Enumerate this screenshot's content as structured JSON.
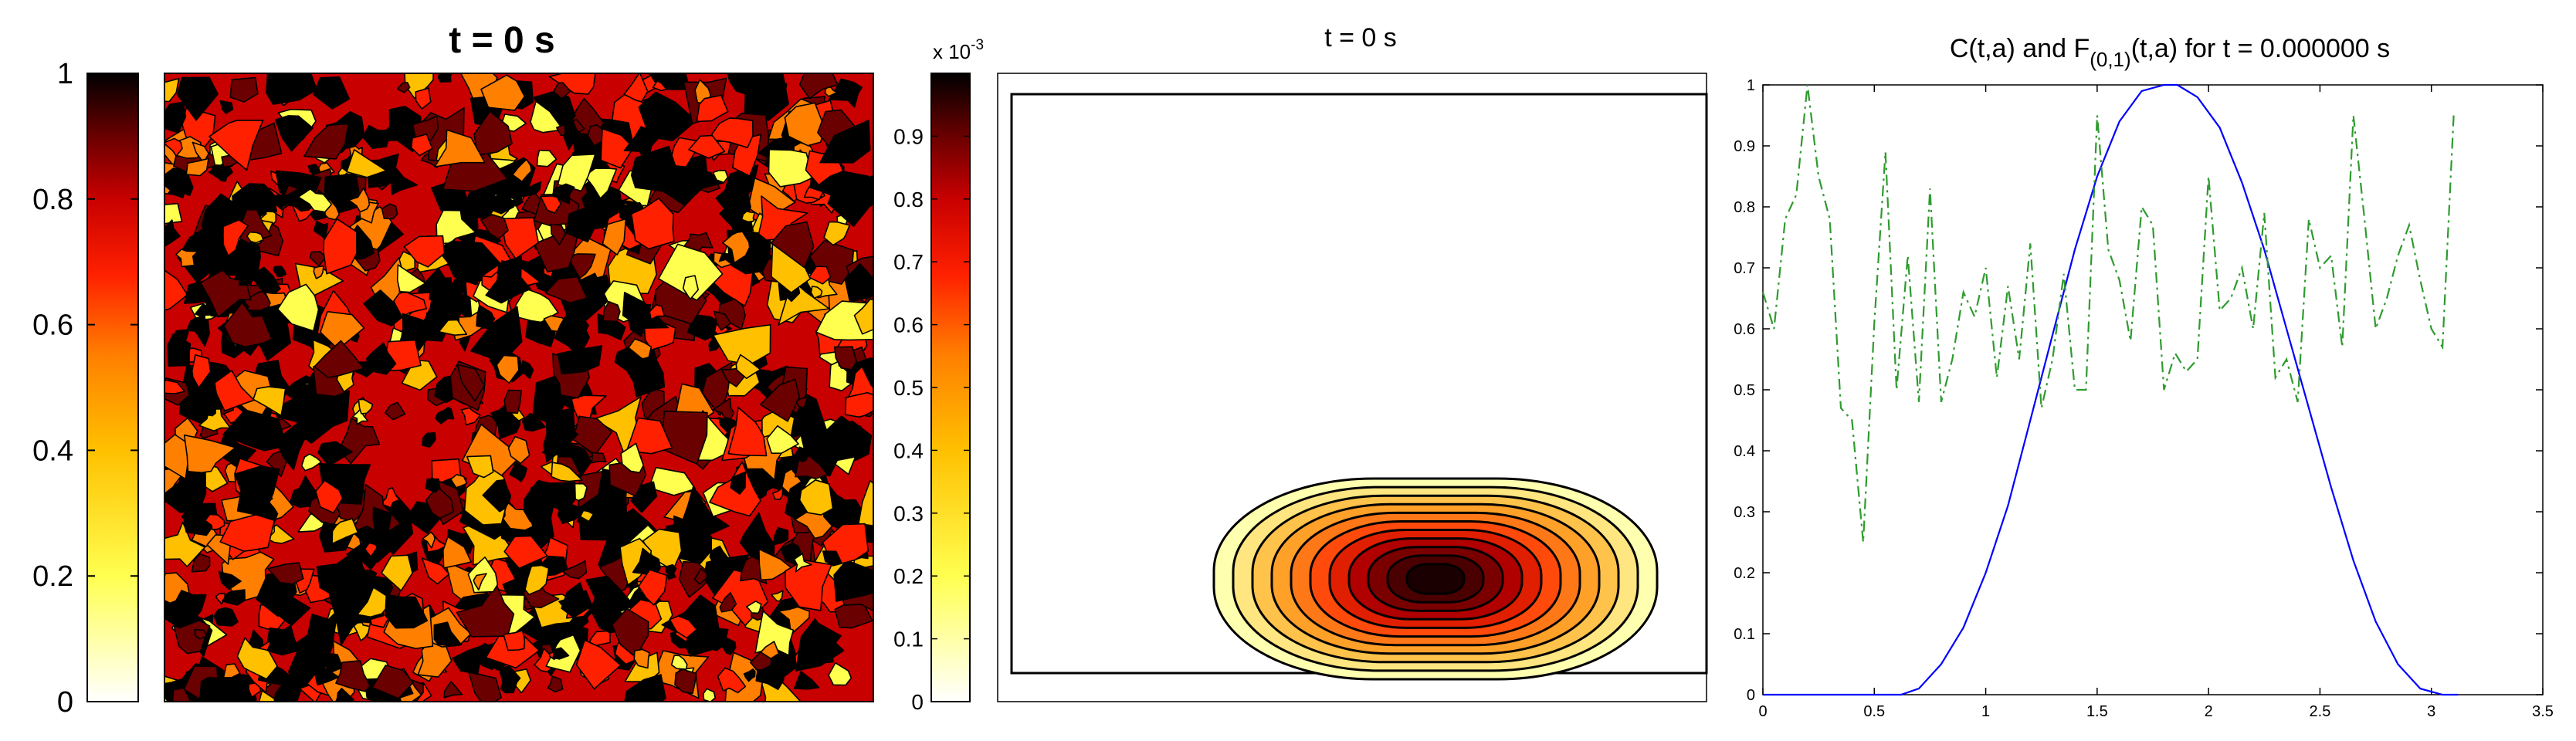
{
  "panels": {
    "left": {
      "title": "t = 0 s",
      "colorbar_ticks": [
        "0",
        "0.2",
        "0.4",
        "0.6",
        "0.8",
        "1"
      ],
      "colormap": [
        "#ffffff",
        "#ffff50",
        "#ffc000",
        "#ff8000",
        "#ff2000",
        "#c80000",
        "#6a0000",
        "#000000"
      ]
    },
    "middle": {
      "title": "t = 0 s",
      "colorbar_exponent": "x 10",
      "colorbar_exponent_power": "-3",
      "colorbar_ticks": [
        "0",
        "0.1",
        "0.2",
        "0.3",
        "0.4",
        "0.5",
        "0.6",
        "0.7",
        "0.8",
        "0.9"
      ]
    },
    "right": {
      "title_part1": "C(t,a) and F",
      "title_subscript": "(0,1)",
      "title_part2": "(t,a) for t = 0.000000 s"
    }
  },
  "chart_data": [
    {
      "type": "heatmap",
      "title": "t = 0 s",
      "description": "filled contour of random field in [0,1]",
      "clim": [
        0,
        1
      ],
      "colorbar_ticks": [
        0,
        0.2,
        0.4,
        0.6,
        0.8,
        1
      ]
    },
    {
      "type": "heatmap",
      "title": "t = 0 s",
      "clim": [
        0,
        0.001
      ],
      "colorbar_ticks": [
        0,
        0.1,
        0.2,
        0.3,
        0.4,
        0.5,
        0.6,
        0.7,
        0.8,
        0.9
      ],
      "colorbar_scale": "x 10^-3",
      "description": "filled contour of a single Gaussian peak near the bottom boundary"
    },
    {
      "type": "line",
      "title": "C(t,a) and F_(0,1)(t,a) for t = 0.000000 s",
      "xlim": [
        0,
        3.5
      ],
      "ylim": [
        0,
        1
      ],
      "xticks": [
        0,
        0.5,
        1,
        1.5,
        2,
        2.5,
        3,
        3.5
      ],
      "yticks": [
        0,
        0.1,
        0.2,
        0.3,
        0.4,
        0.5,
        0.6,
        0.7,
        0.8,
        0.9,
        1
      ],
      "series": [
        {
          "style": "solid",
          "color": "#0000ff",
          "x": [
            0,
            0.62,
            0.7,
            0.8,
            0.9,
            1.0,
            1.1,
            1.2,
            1.3,
            1.4,
            1.5,
            1.6,
            1.7,
            1.8,
            1.86,
            1.95,
            2.05,
            2.15,
            2.25,
            2.35,
            2.45,
            2.55,
            2.65,
            2.75,
            2.85,
            2.95,
            3.05,
            3.12
          ],
          "y": [
            0,
            0,
            0.01,
            0.05,
            0.11,
            0.2,
            0.31,
            0.45,
            0.59,
            0.73,
            0.85,
            0.94,
            0.99,
            1.0,
            1.0,
            0.98,
            0.93,
            0.84,
            0.73,
            0.6,
            0.47,
            0.34,
            0.22,
            0.12,
            0.05,
            0.01,
            0.0,
            0.0
          ]
        },
        {
          "style": "dash-dot",
          "color": "#2e9b2e",
          "x": [
            0,
            0.05,
            0.1,
            0.15,
            0.2,
            0.25,
            0.3,
            0.35,
            0.4,
            0.45,
            0.5,
            0.55,
            0.6,
            0.65,
            0.7,
            0.75,
            0.8,
            0.85,
            0.9,
            0.95,
            1.0,
            1.05,
            1.1,
            1.15,
            1.2,
            1.25,
            1.3,
            1.35,
            1.4,
            1.45,
            1.5,
            1.55,
            1.6,
            1.65,
            1.7,
            1.75,
            1.8,
            1.85,
            1.9,
            1.95,
            2.0,
            2.05,
            2.1,
            2.15,
            2.2,
            2.25,
            2.3,
            2.35,
            2.4,
            2.45,
            2.5,
            2.55,
            2.6,
            2.65,
            2.7,
            2.75,
            2.8,
            2.85,
            2.9,
            2.95,
            3.0,
            3.05,
            3.1
          ],
          "y": [
            0.66,
            0.6,
            0.78,
            0.82,
            1.0,
            0.85,
            0.78,
            0.47,
            0.45,
            0.25,
            0.61,
            0.89,
            0.5,
            0.72,
            0.48,
            0.83,
            0.48,
            0.55,
            0.66,
            0.62,
            0.7,
            0.52,
            0.67,
            0.55,
            0.74,
            0.47,
            0.55,
            0.69,
            0.5,
            0.5,
            0.95,
            0.73,
            0.68,
            0.58,
            0.8,
            0.77,
            0.5,
            0.56,
            0.53,
            0.55,
            0.85,
            0.63,
            0.65,
            0.7,
            0.6,
            0.79,
            0.52,
            0.55,
            0.48,
            0.78,
            0.7,
            0.72,
            0.57,
            0.95,
            0.78,
            0.6,
            0.65,
            0.72,
            0.77,
            0.68,
            0.6,
            0.57,
            0.95
          ]
        }
      ]
    }
  ]
}
